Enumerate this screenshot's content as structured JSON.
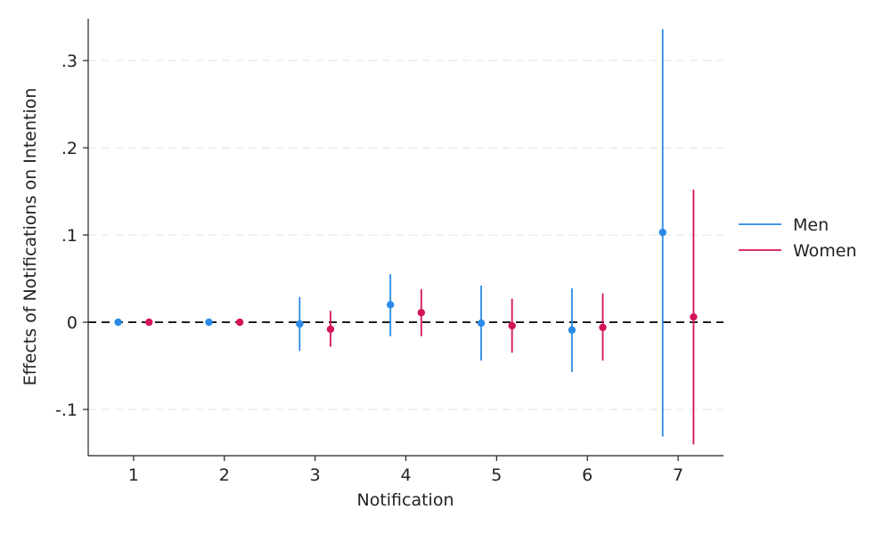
{
  "chart_data": {
    "type": "scatter",
    "xlabel": "Notification",
    "ylabel": "Effects of Notifications on Intention",
    "x_ticks": [
      "1",
      "2",
      "3",
      "4",
      "5",
      "6",
      "7"
    ],
    "y_ticks": [
      {
        "value": 0.3,
        "label": ".3"
      },
      {
        "value": 0.2,
        "label": ".2"
      },
      {
        "value": 0.1,
        "label": ".1"
      },
      {
        "value": 0,
        "label": "0"
      },
      {
        "value": -0.1,
        "label": "-.1"
      }
    ],
    "xlim": [
      0.5,
      7.5
    ],
    "ylim": [
      -0.153,
      0.348
    ],
    "grid": true,
    "reference_line": 0,
    "legend_position": "right",
    "series": [
      {
        "name": "Men",
        "color": "#2b8ae6",
        "offset": -0.17,
        "points": [
          {
            "x": 1,
            "y": 0.0,
            "lo": 0.0,
            "hi": 0.0
          },
          {
            "x": 2,
            "y": 0.0,
            "lo": 0.0,
            "hi": 0.0
          },
          {
            "x": 3,
            "y": -0.002,
            "lo": -0.033,
            "hi": 0.029
          },
          {
            "x": 4,
            "y": 0.02,
            "lo": -0.016,
            "hi": 0.055
          },
          {
            "x": 5,
            "y": -0.001,
            "lo": -0.044,
            "hi": 0.042
          },
          {
            "x": 6,
            "y": -0.009,
            "lo": -0.057,
            "hi": 0.039
          },
          {
            "x": 7,
            "y": 0.103,
            "lo": -0.131,
            "hi": 0.336
          }
        ]
      },
      {
        "name": "Women",
        "color": "#d4145a",
        "offset": 0.17,
        "points": [
          {
            "x": 1,
            "y": 0.0,
            "lo": 0.0,
            "hi": 0.0
          },
          {
            "x": 2,
            "y": 0.0,
            "lo": 0.0,
            "hi": 0.0
          },
          {
            "x": 3,
            "y": -0.008,
            "lo": -0.028,
            "hi": 0.013
          },
          {
            "x": 4,
            "y": 0.011,
            "lo": -0.016,
            "hi": 0.038
          },
          {
            "x": 5,
            "y": -0.004,
            "lo": -0.035,
            "hi": 0.027
          },
          {
            "x": 6,
            "y": -0.006,
            "lo": -0.044,
            "hi": 0.033
          },
          {
            "x": 7,
            "y": 0.006,
            "lo": -0.14,
            "hi": 0.152
          }
        ]
      }
    ]
  }
}
